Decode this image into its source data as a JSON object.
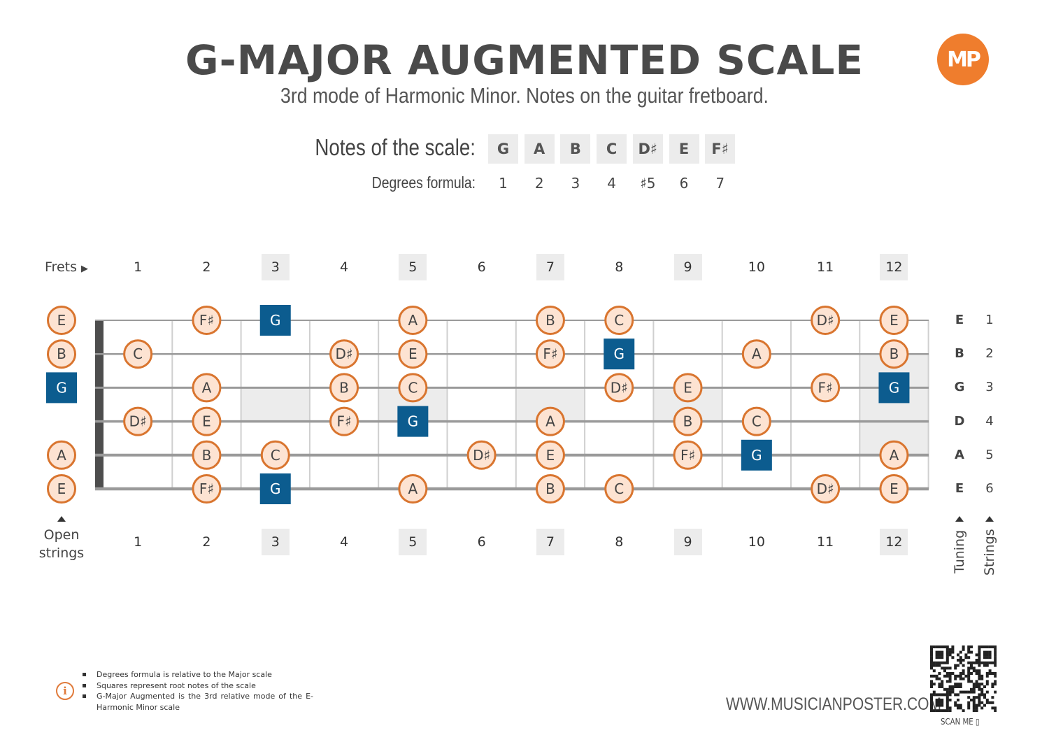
{
  "header": {
    "title": "G-MAJOR AUGMENTED SCALE",
    "subtitle": "3rd mode of Harmonic Minor. Notes on the guitar fretboard.",
    "logo_text": "MP"
  },
  "scale": {
    "notes_label": "Notes of the scale:",
    "degrees_label": "Degrees formula:",
    "notes": [
      "G",
      "A",
      "B",
      "C",
      "D♯",
      "E",
      "F♯"
    ],
    "degrees": [
      "1",
      "2",
      "3",
      "4",
      "♯5",
      "6",
      "7"
    ]
  },
  "fretboard": {
    "frets_label": "Frets",
    "fret_numbers": [
      "1",
      "2",
      "3",
      "4",
      "5",
      "6",
      "7",
      "8",
      "9",
      "10",
      "11",
      "12"
    ],
    "highlighted_frets": [
      3,
      5,
      7,
      9,
      12
    ],
    "open_strings_label": [
      "Open",
      "strings"
    ],
    "tuning_label": "Tuning",
    "strings_label": "Strings",
    "tuning": [
      "E",
      "B",
      "G",
      "D",
      "A",
      "E"
    ],
    "string_numbers": [
      "1",
      "2",
      "3",
      "4",
      "5",
      "6"
    ],
    "root_note": "G",
    "open_notes": [
      "E",
      "B",
      "G",
      "",
      "A",
      "E"
    ],
    "positions": [
      {
        "string": 1,
        "fret": 2,
        "note": "F♯"
      },
      {
        "string": 1,
        "fret": 3,
        "note": "G"
      },
      {
        "string": 1,
        "fret": 5,
        "note": "A"
      },
      {
        "string": 1,
        "fret": 7,
        "note": "B"
      },
      {
        "string": 1,
        "fret": 8,
        "note": "C"
      },
      {
        "string": 1,
        "fret": 11,
        "note": "D♯"
      },
      {
        "string": 1,
        "fret": 12,
        "note": "E"
      },
      {
        "string": 2,
        "fret": 1,
        "note": "C"
      },
      {
        "string": 2,
        "fret": 4,
        "note": "D♯"
      },
      {
        "string": 2,
        "fret": 5,
        "note": "E"
      },
      {
        "string": 2,
        "fret": 7,
        "note": "F♯"
      },
      {
        "string": 2,
        "fret": 8,
        "note": "G"
      },
      {
        "string": 2,
        "fret": 10,
        "note": "A"
      },
      {
        "string": 2,
        "fret": 12,
        "note": "B"
      },
      {
        "string": 3,
        "fret": 2,
        "note": "A"
      },
      {
        "string": 3,
        "fret": 4,
        "note": "B"
      },
      {
        "string": 3,
        "fret": 5,
        "note": "C"
      },
      {
        "string": 3,
        "fret": 8,
        "note": "D♯"
      },
      {
        "string": 3,
        "fret": 9,
        "note": "E"
      },
      {
        "string": 3,
        "fret": 11,
        "note": "F♯"
      },
      {
        "string": 3,
        "fret": 12,
        "note": "G"
      },
      {
        "string": 4,
        "fret": 1,
        "note": "D♯"
      },
      {
        "string": 4,
        "fret": 2,
        "note": "E"
      },
      {
        "string": 4,
        "fret": 4,
        "note": "F♯"
      },
      {
        "string": 4,
        "fret": 5,
        "note": "G"
      },
      {
        "string": 4,
        "fret": 7,
        "note": "A"
      },
      {
        "string": 4,
        "fret": 9,
        "note": "B"
      },
      {
        "string": 4,
        "fret": 10,
        "note": "C"
      },
      {
        "string": 5,
        "fret": 2,
        "note": "B"
      },
      {
        "string": 5,
        "fret": 3,
        "note": "C"
      },
      {
        "string": 5,
        "fret": 6,
        "note": "D♯"
      },
      {
        "string": 5,
        "fret": 7,
        "note": "E"
      },
      {
        "string": 5,
        "fret": 9,
        "note": "F♯"
      },
      {
        "string": 5,
        "fret": 10,
        "note": "G"
      },
      {
        "string": 5,
        "fret": 12,
        "note": "A"
      },
      {
        "string": 6,
        "fret": 2,
        "note": "F♯"
      },
      {
        "string": 6,
        "fret": 3,
        "note": "G"
      },
      {
        "string": 6,
        "fret": 5,
        "note": "A"
      },
      {
        "string": 6,
        "fret": 7,
        "note": "B"
      },
      {
        "string": 6,
        "fret": 8,
        "note": "C"
      },
      {
        "string": 6,
        "fret": 11,
        "note": "D♯"
      },
      {
        "string": 6,
        "fret": 12,
        "note": "E"
      }
    ]
  },
  "colors": {
    "root_fill": "#0c5c8f",
    "note_fill": "#fde3d2",
    "note_stroke": "#d9752f",
    "logo": "#ef7d2d",
    "marker_fill": "#ececec"
  },
  "footer": {
    "info_items": [
      "Degrees formula is relative to the Major scale",
      "Squares represent root notes of the scale",
      "G-Major Augmented is the 3rd relative mode of the E-Harmonic Minor scale"
    ],
    "website": "WWW.MUSICIANPOSTER.COM",
    "scan_label": "SCAN ME"
  }
}
